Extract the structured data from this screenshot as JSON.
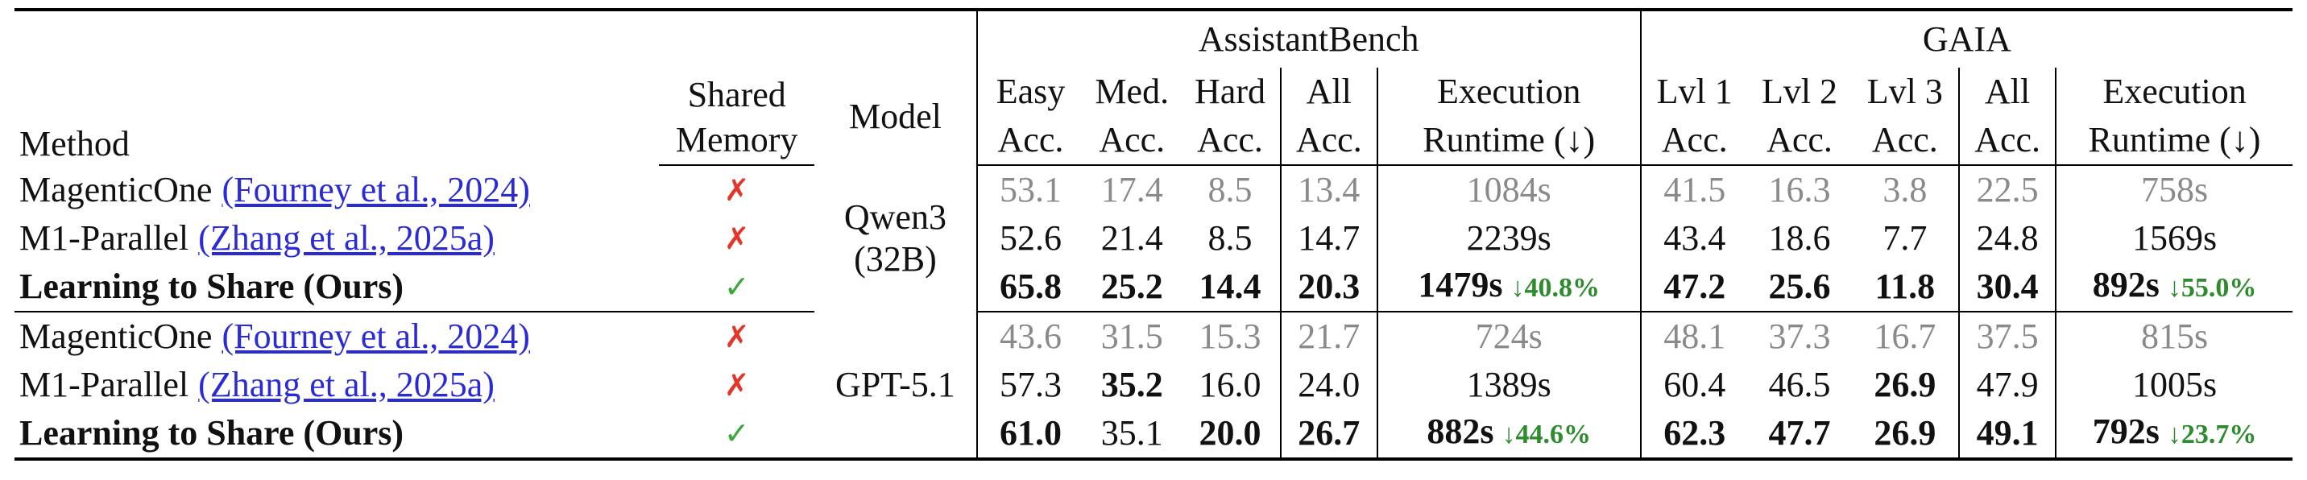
{
  "header": {
    "method": "Method",
    "shared_memory": [
      "Shared",
      "Memory"
    ],
    "model": "Model",
    "groups": [
      {
        "name": "AssistantBench",
        "columns": [
          [
            "Easy",
            "Acc."
          ],
          [
            "Med.",
            "Acc."
          ],
          [
            "Hard",
            "Acc."
          ],
          [
            "All",
            "Acc."
          ],
          [
            "Execution",
            "Runtime (↓)"
          ]
        ]
      },
      {
        "name": "GAIA",
        "columns": [
          [
            "Lvl 1",
            "Acc."
          ],
          [
            "Lvl 2",
            "Acc."
          ],
          [
            "Lvl 3",
            "Acc."
          ],
          [
            "All",
            "Acc."
          ],
          [
            "Execution",
            "Runtime (↓)"
          ]
        ]
      }
    ]
  },
  "sections": [
    {
      "model": [
        "Qwen3",
        "(32B)"
      ],
      "rows": [
        {
          "method": "MagenticOne",
          "citation": "(Fourney et al., 2024)",
          "shared_memory": "✗",
          "assistantbench": [
            "53.1",
            "17.4",
            "8.5",
            "13.4",
            "1084s"
          ],
          "gaia": [
            "41.5",
            "16.3",
            "3.8",
            "22.5",
            "758s"
          ]
        },
        {
          "method": "M1-Parallel",
          "citation": "(Zhang et al., 2025a)",
          "shared_memory": "✗",
          "assistantbench": [
            "52.6",
            "21.4",
            "8.5",
            "14.7",
            "2239s"
          ],
          "gaia": [
            "43.4",
            "18.6",
            "7.7",
            "24.8",
            "1569s"
          ]
        },
        {
          "method": "Learning to Share (Ours)",
          "shared_memory": "✓",
          "assistantbench": [
            "65.8",
            "25.2",
            "14.4",
            "20.3",
            "1479s"
          ],
          "assistantbench_change": "↓40.8%",
          "gaia": [
            "47.2",
            "25.6",
            "11.8",
            "30.4",
            "892s"
          ],
          "gaia_change": "↓55.0%"
        }
      ]
    },
    {
      "model": [
        "GPT-5.1"
      ],
      "rows": [
        {
          "method": "MagenticOne",
          "citation": "(Fourney et al., 2024)",
          "shared_memory": "✗",
          "assistantbench": [
            "43.6",
            "31.5",
            "15.3",
            "21.7",
            "724s"
          ],
          "gaia": [
            "48.1",
            "37.3",
            "16.7",
            "37.5",
            "815s"
          ]
        },
        {
          "method": "M1-Parallel",
          "citation": "(Zhang et al., 2025a)",
          "shared_memory": "✗",
          "assistantbench": [
            "57.3",
            "35.2",
            "16.0",
            "24.0",
            "1389s"
          ],
          "gaia": [
            "60.4",
            "46.5",
            "26.9",
            "47.9",
            "1005s"
          ]
        },
        {
          "method": "Learning to Share (Ours)",
          "shared_memory": "✓",
          "assistantbench": [
            "61.0",
            "35.1",
            "20.0",
            "26.7",
            "882s"
          ],
          "assistantbench_change": "↓44.6%",
          "gaia": [
            "62.3",
            "47.7",
            "26.9",
            "49.1",
            "792s"
          ],
          "gaia_change": "↓23.7%"
        }
      ]
    }
  ]
}
